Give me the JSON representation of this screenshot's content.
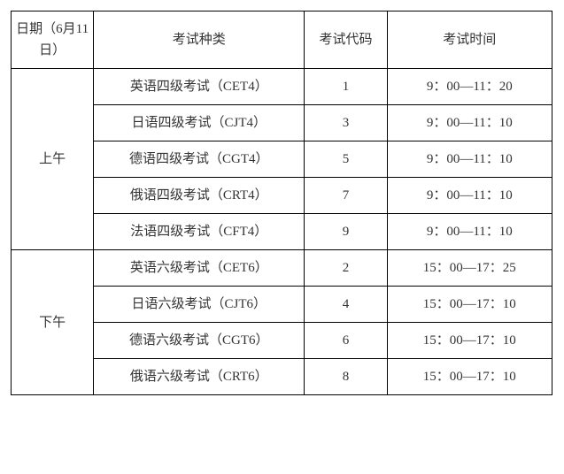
{
  "headers": {
    "date": "日期（6月11日）",
    "type": "考试种类",
    "code": "考试代码",
    "time": "考试时间"
  },
  "sessions": [
    {
      "label": "上午",
      "rows": [
        {
          "type": "英语四级考试（CET4）",
          "code": "1",
          "time": "9：00—11：20"
        },
        {
          "type": "日语四级考试（CJT4）",
          "code": "3",
          "time": "9：00—11：10"
        },
        {
          "type": "德语四级考试（CGT4）",
          "code": "5",
          "time": "9：00—11：10"
        },
        {
          "type": "俄语四级考试（CRT4）",
          "code": "7",
          "time": "9：00—11：10"
        },
        {
          "type": "法语四级考试（CFT4）",
          "code": "9",
          "time": "9：00—11：10"
        }
      ]
    },
    {
      "label": "下午",
      "rows": [
        {
          "type": "英语六级考试（CET6）",
          "code": "2",
          "time": "15：00—17：25"
        },
        {
          "type": "日语六级考试（CJT6）",
          "code": "4",
          "time": "15：00—17：10"
        },
        {
          "type": "德语六级考试（CGT6）",
          "code": "6",
          "time": "15：00—17：10"
        },
        {
          "type": "俄语六级考试（CRT6）",
          "code": "8",
          "time": "15：00—17：10"
        }
      ]
    }
  ]
}
